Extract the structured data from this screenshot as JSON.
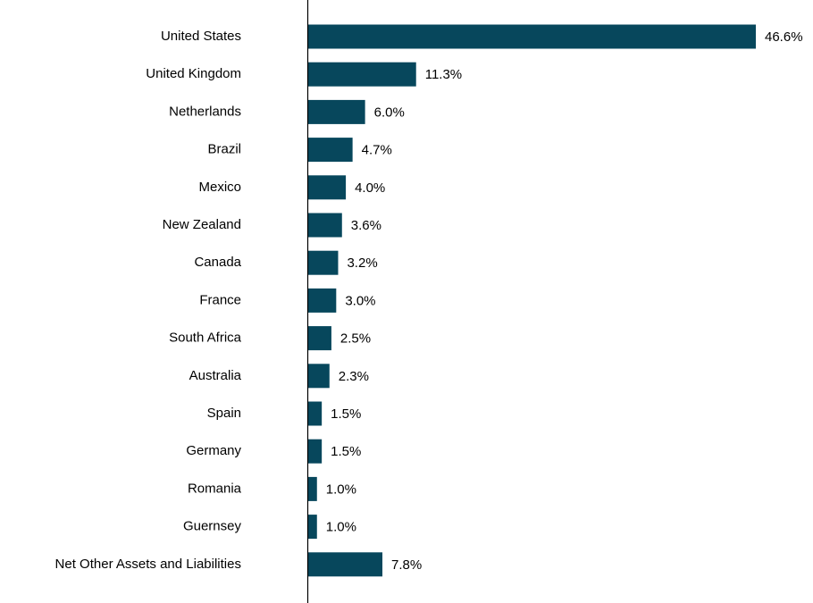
{
  "chart_data": {
    "type": "bar",
    "orientation": "horizontal",
    "categories": [
      "United States",
      "United Kingdom",
      "Netherlands",
      "Brazil",
      "Mexico",
      "New Zealand",
      "Canada",
      "France",
      "South Africa",
      "Australia",
      "Spain",
      "Germany",
      "Romania",
      "Guernsey",
      "Net Other Assets and Liabilities"
    ],
    "values": [
      46.6,
      11.3,
      6.0,
      4.7,
      4.0,
      3.6,
      3.2,
      3.0,
      2.5,
      2.3,
      1.5,
      1.5,
      1.0,
      1.0,
      7.8
    ],
    "value_labels": [
      "46.6%",
      "11.3%",
      "6.0%",
      "4.7%",
      "4.0%",
      "3.6%",
      "3.2%",
      "3.0%",
      "2.5%",
      "2.3%",
      "1.5%",
      "1.5%",
      "1.0%",
      "1.0%",
      "7.8%"
    ],
    "color": "#07475c",
    "xlim": [
      0,
      46.6
    ]
  }
}
